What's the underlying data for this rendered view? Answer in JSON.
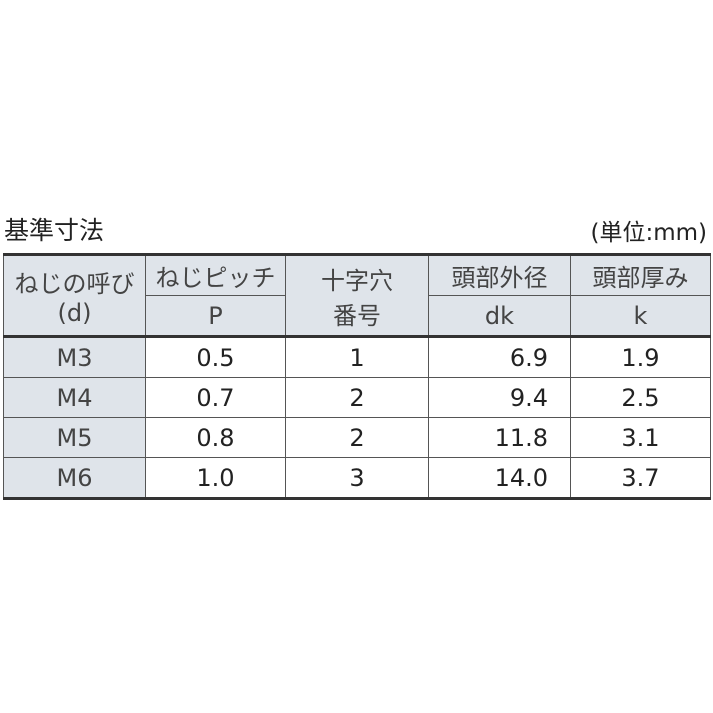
{
  "title": "基準寸法",
  "unit": "(単位:mm)",
  "headers": {
    "c0": [
      "ねじの呼び",
      "(d)"
    ],
    "c1": [
      "ねじピッチ",
      "P"
    ],
    "c2": [
      "十字穴",
      "番号"
    ],
    "c3": [
      "頭部外径",
      "dk"
    ],
    "c4": [
      "頭部厚み",
      "k"
    ]
  },
  "rows": [
    [
      "M3",
      "0.5",
      "1",
      "6.9",
      "1.9"
    ],
    [
      "M4",
      "0.7",
      "2",
      "9.4",
      "2.5"
    ],
    [
      "M5",
      "0.8",
      "2",
      "11.8",
      "3.1"
    ],
    [
      "M6",
      "1.0",
      "3",
      "14.0",
      "3.7"
    ]
  ]
}
